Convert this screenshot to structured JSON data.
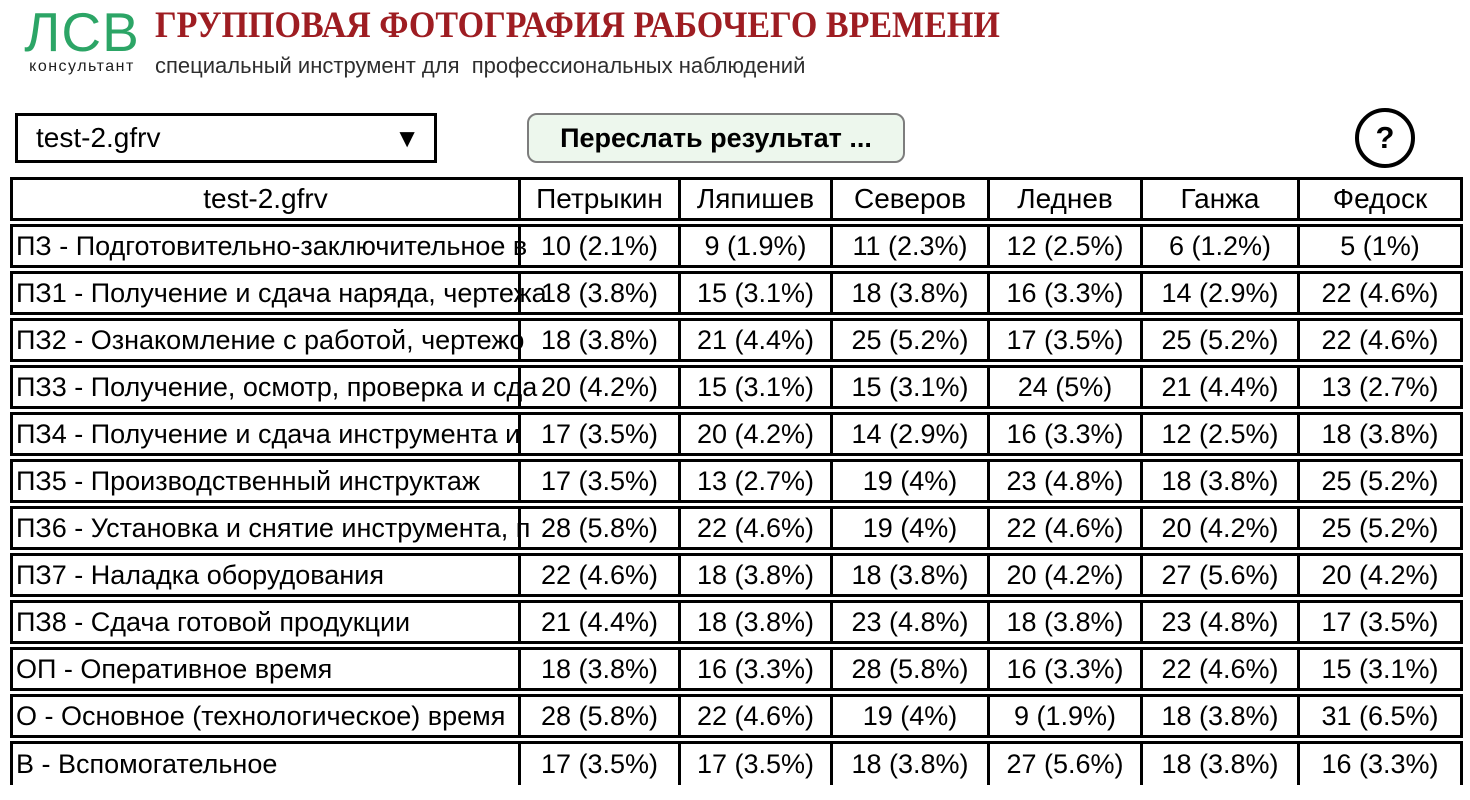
{
  "header": {
    "logo_text": "ЛСВ",
    "logo_subtext": "консультант",
    "title": "ГРУППОВАЯ ФОТОГРАФИЯ РАБОЧЕГО ВРЕМЕНИ",
    "subtitle": "специальный инструмент для  профессиональных наблюдений"
  },
  "controls": {
    "file_select_value": "test-2.gfrv",
    "dropdown_icon": "▼",
    "send_button_label": "Переслать результат ...",
    "help_button_label": "?"
  },
  "colors": {
    "title_red": "#9e1d22",
    "logo_green": "#2ca566",
    "button_bg": "#edf7ed",
    "table_border": "#000000"
  },
  "table": {
    "columns": [
      "test-2.gfrv",
      "Петрыкин",
      "Ляпишев",
      "Северов",
      "Леднев",
      "Ганжа",
      "Федоск"
    ],
    "rows": [
      {
        "label": "ПЗ - Подготовительно-заключительное в",
        "values": [
          "10 (2.1%)",
          "9 (1.9%)",
          "11 (2.3%)",
          "12 (2.5%)",
          "6 (1.2%)",
          "5 (1%)"
        ]
      },
      {
        "label": "ПЗ1 - Получение и сдача наряда, чертежа",
        "values": [
          "18 (3.8%)",
          "15 (3.1%)",
          "18 (3.8%)",
          "16 (3.3%)",
          "14 (2.9%)",
          "22 (4.6%)"
        ]
      },
      {
        "label": "ПЗ2 - Ознакомление с работой, чертежо",
        "values": [
          "18 (3.8%)",
          "21 (4.4%)",
          "25 (5.2%)",
          "17 (3.5%)",
          "25 (5.2%)",
          "22 (4.6%)"
        ]
      },
      {
        "label": "ПЗ3 - Получение, осмотр, проверка и сда",
        "values": [
          "20 (4.2%)",
          "15 (3.1%)",
          "15 (3.1%)",
          "24 (5%)",
          "21 (4.4%)",
          "13 (2.7%)"
        ]
      },
      {
        "label": "ПЗ4 - Получение и сдача инструмента и",
        "values": [
          "17 (3.5%)",
          "20 (4.2%)",
          "14 (2.9%)",
          "16 (3.3%)",
          "12 (2.5%)",
          "18 (3.8%)"
        ]
      },
      {
        "label": "ПЗ5 - Производственный инструктаж",
        "values": [
          "17 (3.5%)",
          "13 (2.7%)",
          "19 (4%)",
          "23 (4.8%)",
          "18 (3.8%)",
          "25 (5.2%)"
        ]
      },
      {
        "label": "ПЗ6 - Установка и снятие инструмента, п",
        "values": [
          "28 (5.8%)",
          "22 (4.6%)",
          "19 (4%)",
          "22 (4.6%)",
          "20 (4.2%)",
          "25 (5.2%)"
        ]
      },
      {
        "label": "ПЗ7 - Наладка оборудования",
        "values": [
          "22 (4.6%)",
          "18 (3.8%)",
          "18 (3.8%)",
          "20 (4.2%)",
          "27 (5.6%)",
          "20 (4.2%)"
        ]
      },
      {
        "label": "ПЗ8 - Сдача готовой продукции",
        "values": [
          "21 (4.4%)",
          "18 (3.8%)",
          "23 (4.8%)",
          "18 (3.8%)",
          "23 (4.8%)",
          "17 (3.5%)"
        ]
      },
      {
        "label": "ОП - Оперативное время",
        "values": [
          "18 (3.8%)",
          "16 (3.3%)",
          "28 (5.8%)",
          "16 (3.3%)",
          "22 (4.6%)",
          "15 (3.1%)"
        ]
      },
      {
        "label": "О - Основное (технологическое) время",
        "values": [
          "28 (5.8%)",
          "22 (4.6%)",
          "19 (4%)",
          "9 (1.9%)",
          "18 (3.8%)",
          "31 (6.5%)"
        ]
      },
      {
        "label": "В - Вспомогательное",
        "values": [
          "17 (3.5%)",
          "17 (3.5%)",
          "18 (3.8%)",
          "27 (5.6%)",
          "18 (3.8%)",
          "16 (3.3%)"
        ]
      }
    ]
  }
}
